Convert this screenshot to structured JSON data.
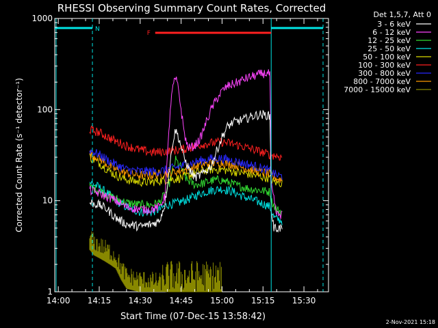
{
  "chart_data": {
    "type": "line",
    "title": "RHESSI Observing Summary Count Rates, Corrected",
    "xlabel": "Start Time (07-Dec-15 13:58:42)",
    "ylabel": "Corrected Count Rate (s⁻¹ detector⁻¹)",
    "x_unit": "minutes after 14:00",
    "x_ticks": [
      {
        "t": 0,
        "label": "14:00"
      },
      {
        "t": 15,
        "label": "14:15"
      },
      {
        "t": 30,
        "label": "14:30"
      },
      {
        "t": 45,
        "label": "14:45"
      },
      {
        "t": 60,
        "label": "15:00"
      },
      {
        "t": 75,
        "label": "15:15"
      },
      {
        "t": 90,
        "label": "15:30"
      }
    ],
    "xlim": [
      -1.3,
      99
    ],
    "y_ticks": [
      {
        "v": 1,
        "label": "1"
      },
      {
        "v": 10,
        "label": "10"
      },
      {
        "v": 100,
        "label": "100"
      },
      {
        "v": 1000,
        "label": "1000"
      }
    ],
    "ylim": [
      1,
      1000
    ],
    "y_scale": "log",
    "grid": false,
    "legend_header": "Det 1,5,7, Att 0",
    "legend_position": "right, outside plot",
    "series": [
      {
        "name": "3 - 6 keV",
        "color": "#ffffff",
        "points": [
          [
            11.5,
            9.5
          ],
          [
            15,
            9
          ],
          [
            18,
            8
          ],
          [
            21,
            6.5
          ],
          [
            25,
            5.5
          ],
          [
            30,
            5.2
          ],
          [
            34,
            5.5
          ],
          [
            37,
            6
          ],
          [
            39,
            9
          ],
          [
            40.5,
            20
          ],
          [
            42,
            45
          ],
          [
            43,
            60
          ],
          [
            44.5,
            45
          ],
          [
            46,
            30
          ],
          [
            48,
            22
          ],
          [
            50,
            18
          ],
          [
            52,
            19
          ],
          [
            54,
            21
          ],
          [
            56,
            24
          ],
          [
            58,
            35
          ],
          [
            60,
            50
          ],
          [
            62,
            65
          ],
          [
            64,
            72
          ],
          [
            66,
            75
          ],
          [
            68,
            78
          ],
          [
            70,
            82
          ],
          [
            72,
            86
          ],
          [
            74,
            88
          ],
          [
            76,
            87
          ],
          [
            77.6,
            85
          ],
          [
            78,
            8
          ],
          [
            79,
            5
          ],
          [
            82,
            5
          ]
        ]
      },
      {
        "name": "6 - 12 keV",
        "color": "#ff44ff",
        "points": [
          [
            11.5,
            13
          ],
          [
            15,
            12
          ],
          [
            18,
            11
          ],
          [
            21,
            10
          ],
          [
            25,
            8.5
          ],
          [
            30,
            8
          ],
          [
            34,
            8
          ],
          [
            37,
            8.5
          ],
          [
            39,
            11
          ],
          [
            40,
            30
          ],
          [
            41,
            100
          ],
          [
            42,
            180
          ],
          [
            43,
            220
          ],
          [
            44,
            170
          ],
          [
            45,
            100
          ],
          [
            46,
            60
          ],
          [
            47,
            42
          ],
          [
            48,
            38
          ],
          [
            50,
            40
          ],
          [
            52,
            48
          ],
          [
            54,
            70
          ],
          [
            56,
            100
          ],
          [
            58,
            130
          ],
          [
            60,
            160
          ],
          [
            62,
            180
          ],
          [
            64,
            190
          ],
          [
            66,
            200
          ],
          [
            68,
            215
          ],
          [
            70,
            225
          ],
          [
            72,
            235
          ],
          [
            74,
            245
          ],
          [
            76,
            250
          ],
          [
            77.6,
            245
          ],
          [
            78,
            15
          ],
          [
            80,
            7
          ],
          [
            82,
            7
          ]
        ]
      },
      {
        "name": "12 - 25 keV",
        "color": "#33dd33",
        "points": [
          [
            11.5,
            14
          ],
          [
            15,
            13
          ],
          [
            18,
            11.5
          ],
          [
            21,
            10.5
          ],
          [
            25,
            9.5
          ],
          [
            30,
            9
          ],
          [
            34,
            9
          ],
          [
            37,
            9.5
          ],
          [
            40,
            13
          ],
          [
            42,
            22
          ],
          [
            43,
            28
          ],
          [
            45,
            23
          ],
          [
            47,
            17
          ],
          [
            50,
            15
          ],
          [
            53,
            15.5
          ],
          [
            56,
            16.5
          ],
          [
            59,
            17
          ],
          [
            62,
            16
          ],
          [
            66,
            14.5
          ],
          [
            70,
            13.5
          ],
          [
            74,
            13
          ],
          [
            77.6,
            12.5
          ],
          [
            78,
            10
          ],
          [
            80,
            8
          ],
          [
            82,
            7.5
          ]
        ]
      },
      {
        "name": "25 - 50 keV",
        "color": "#00e5e5",
        "points": [
          [
            11.5,
            16
          ],
          [
            15,
            14
          ],
          [
            18,
            12
          ],
          [
            21,
            10
          ],
          [
            25,
            8.5
          ],
          [
            30,
            7.5
          ],
          [
            34,
            7.5
          ],
          [
            37,
            8
          ],
          [
            40,
            9
          ],
          [
            44,
            9.5
          ],
          [
            48,
            10.5
          ],
          [
            52,
            12
          ],
          [
            56,
            13
          ],
          [
            60,
            13.5
          ],
          [
            64,
            12.5
          ],
          [
            68,
            11
          ],
          [
            72,
            10
          ],
          [
            76,
            9
          ],
          [
            77.6,
            8.5
          ],
          [
            79,
            6.5
          ],
          [
            82,
            6
          ]
        ]
      },
      {
        "name": "50 - 100 keV",
        "color": "#dddd00",
        "points": [
          [
            11.5,
            30
          ],
          [
            15,
            26
          ],
          [
            18,
            22
          ],
          [
            21,
            19
          ],
          [
            25,
            17
          ],
          [
            30,
            16
          ],
          [
            34,
            16
          ],
          [
            37,
            16.5
          ],
          [
            40,
            17
          ],
          [
            44,
            17.5
          ],
          [
            48,
            19
          ],
          [
            52,
            21
          ],
          [
            56,
            22
          ],
          [
            60,
            22
          ],
          [
            64,
            21
          ],
          [
            68,
            20
          ],
          [
            72,
            19
          ],
          [
            76,
            18
          ],
          [
            77.6,
            17.5
          ],
          [
            79,
            16
          ],
          [
            82,
            15.5
          ]
        ]
      },
      {
        "name": "100 - 300 keV",
        "color": "#ff2020",
        "points": [
          [
            11.5,
            60
          ],
          [
            15,
            56
          ],
          [
            18,
            50
          ],
          [
            21,
            45
          ],
          [
            25,
            40
          ],
          [
            30,
            36
          ],
          [
            34,
            34
          ],
          [
            37,
            34
          ],
          [
            40,
            35
          ],
          [
            44,
            36
          ],
          [
            48,
            38
          ],
          [
            52,
            41
          ],
          [
            56,
            43
          ],
          [
            60,
            44
          ],
          [
            64,
            42
          ],
          [
            68,
            39
          ],
          [
            72,
            36
          ],
          [
            76,
            33
          ],
          [
            77.6,
            32
          ],
          [
            80,
            31
          ],
          [
            82,
            30
          ]
        ]
      },
      {
        "name": "300 - 800 keV",
        "color": "#2828ff",
        "points": [
          [
            11.5,
            36
          ],
          [
            15,
            32
          ],
          [
            18,
            28
          ],
          [
            21,
            25
          ],
          [
            25,
            22
          ],
          [
            30,
            21
          ],
          [
            34,
            21
          ],
          [
            37,
            21
          ],
          [
            40,
            22
          ],
          [
            44,
            23.5
          ],
          [
            48,
            25.5
          ],
          [
            52,
            27.5
          ],
          [
            56,
            29
          ],
          [
            60,
            29
          ],
          [
            64,
            27.5
          ],
          [
            68,
            25.5
          ],
          [
            72,
            24
          ],
          [
            76,
            22
          ],
          [
            77.6,
            21
          ],
          [
            80,
            19
          ],
          [
            82,
            18.5
          ]
        ]
      },
      {
        "name": "800 - 7000 keV",
        "color": "#ff9900",
        "points": [
          [
            11.5,
            33
          ],
          [
            15,
            29
          ],
          [
            18,
            25
          ],
          [
            21,
            22
          ],
          [
            25,
            20
          ],
          [
            30,
            19
          ],
          [
            34,
            19
          ],
          [
            37,
            19.5
          ],
          [
            40,
            20
          ],
          [
            44,
            21
          ],
          [
            48,
            22.5
          ],
          [
            52,
            24.5
          ],
          [
            56,
            26
          ],
          [
            60,
            26
          ],
          [
            64,
            25
          ],
          [
            68,
            23
          ],
          [
            72,
            21.5
          ],
          [
            76,
            20
          ],
          [
            77.6,
            19.5
          ],
          [
            80,
            17.5
          ],
          [
            82,
            17
          ]
        ]
      },
      {
        "name": "7000 - 15000 keV",
        "color": "#888800",
        "points": [
          [
            11.5,
            3.2
          ],
          [
            13,
            2.8
          ],
          [
            15,
            2.6
          ],
          [
            17,
            2.4
          ],
          [
            19,
            2.2
          ],
          [
            21,
            2
          ],
          [
            23,
            1.5
          ],
          [
            25,
            1.2
          ],
          [
            30,
            1.1
          ],
          [
            35,
            1.05
          ],
          [
            40,
            1
          ],
          [
            60,
            1
          ]
        ]
      }
    ],
    "annotations": {
      "mode_bars": [
        {
          "label": "N",
          "color": "#00e5e5",
          "bar_x": [
            -1.3,
            12.5
          ],
          "dashed_x": 12.5
        },
        {
          "label": "",
          "color": "#00e5e5",
          "bar_x": [
            78,
            97
          ],
          "dashed_x": 97
        }
      ],
      "flare_bar": {
        "label": "F",
        "color": "#ff2020",
        "x": [
          35.5,
          78
        ]
      },
      "vertical_solid_x": [
        -0.8,
        78
      ]
    },
    "footer_date": "2-Nov-2021 15:18"
  }
}
